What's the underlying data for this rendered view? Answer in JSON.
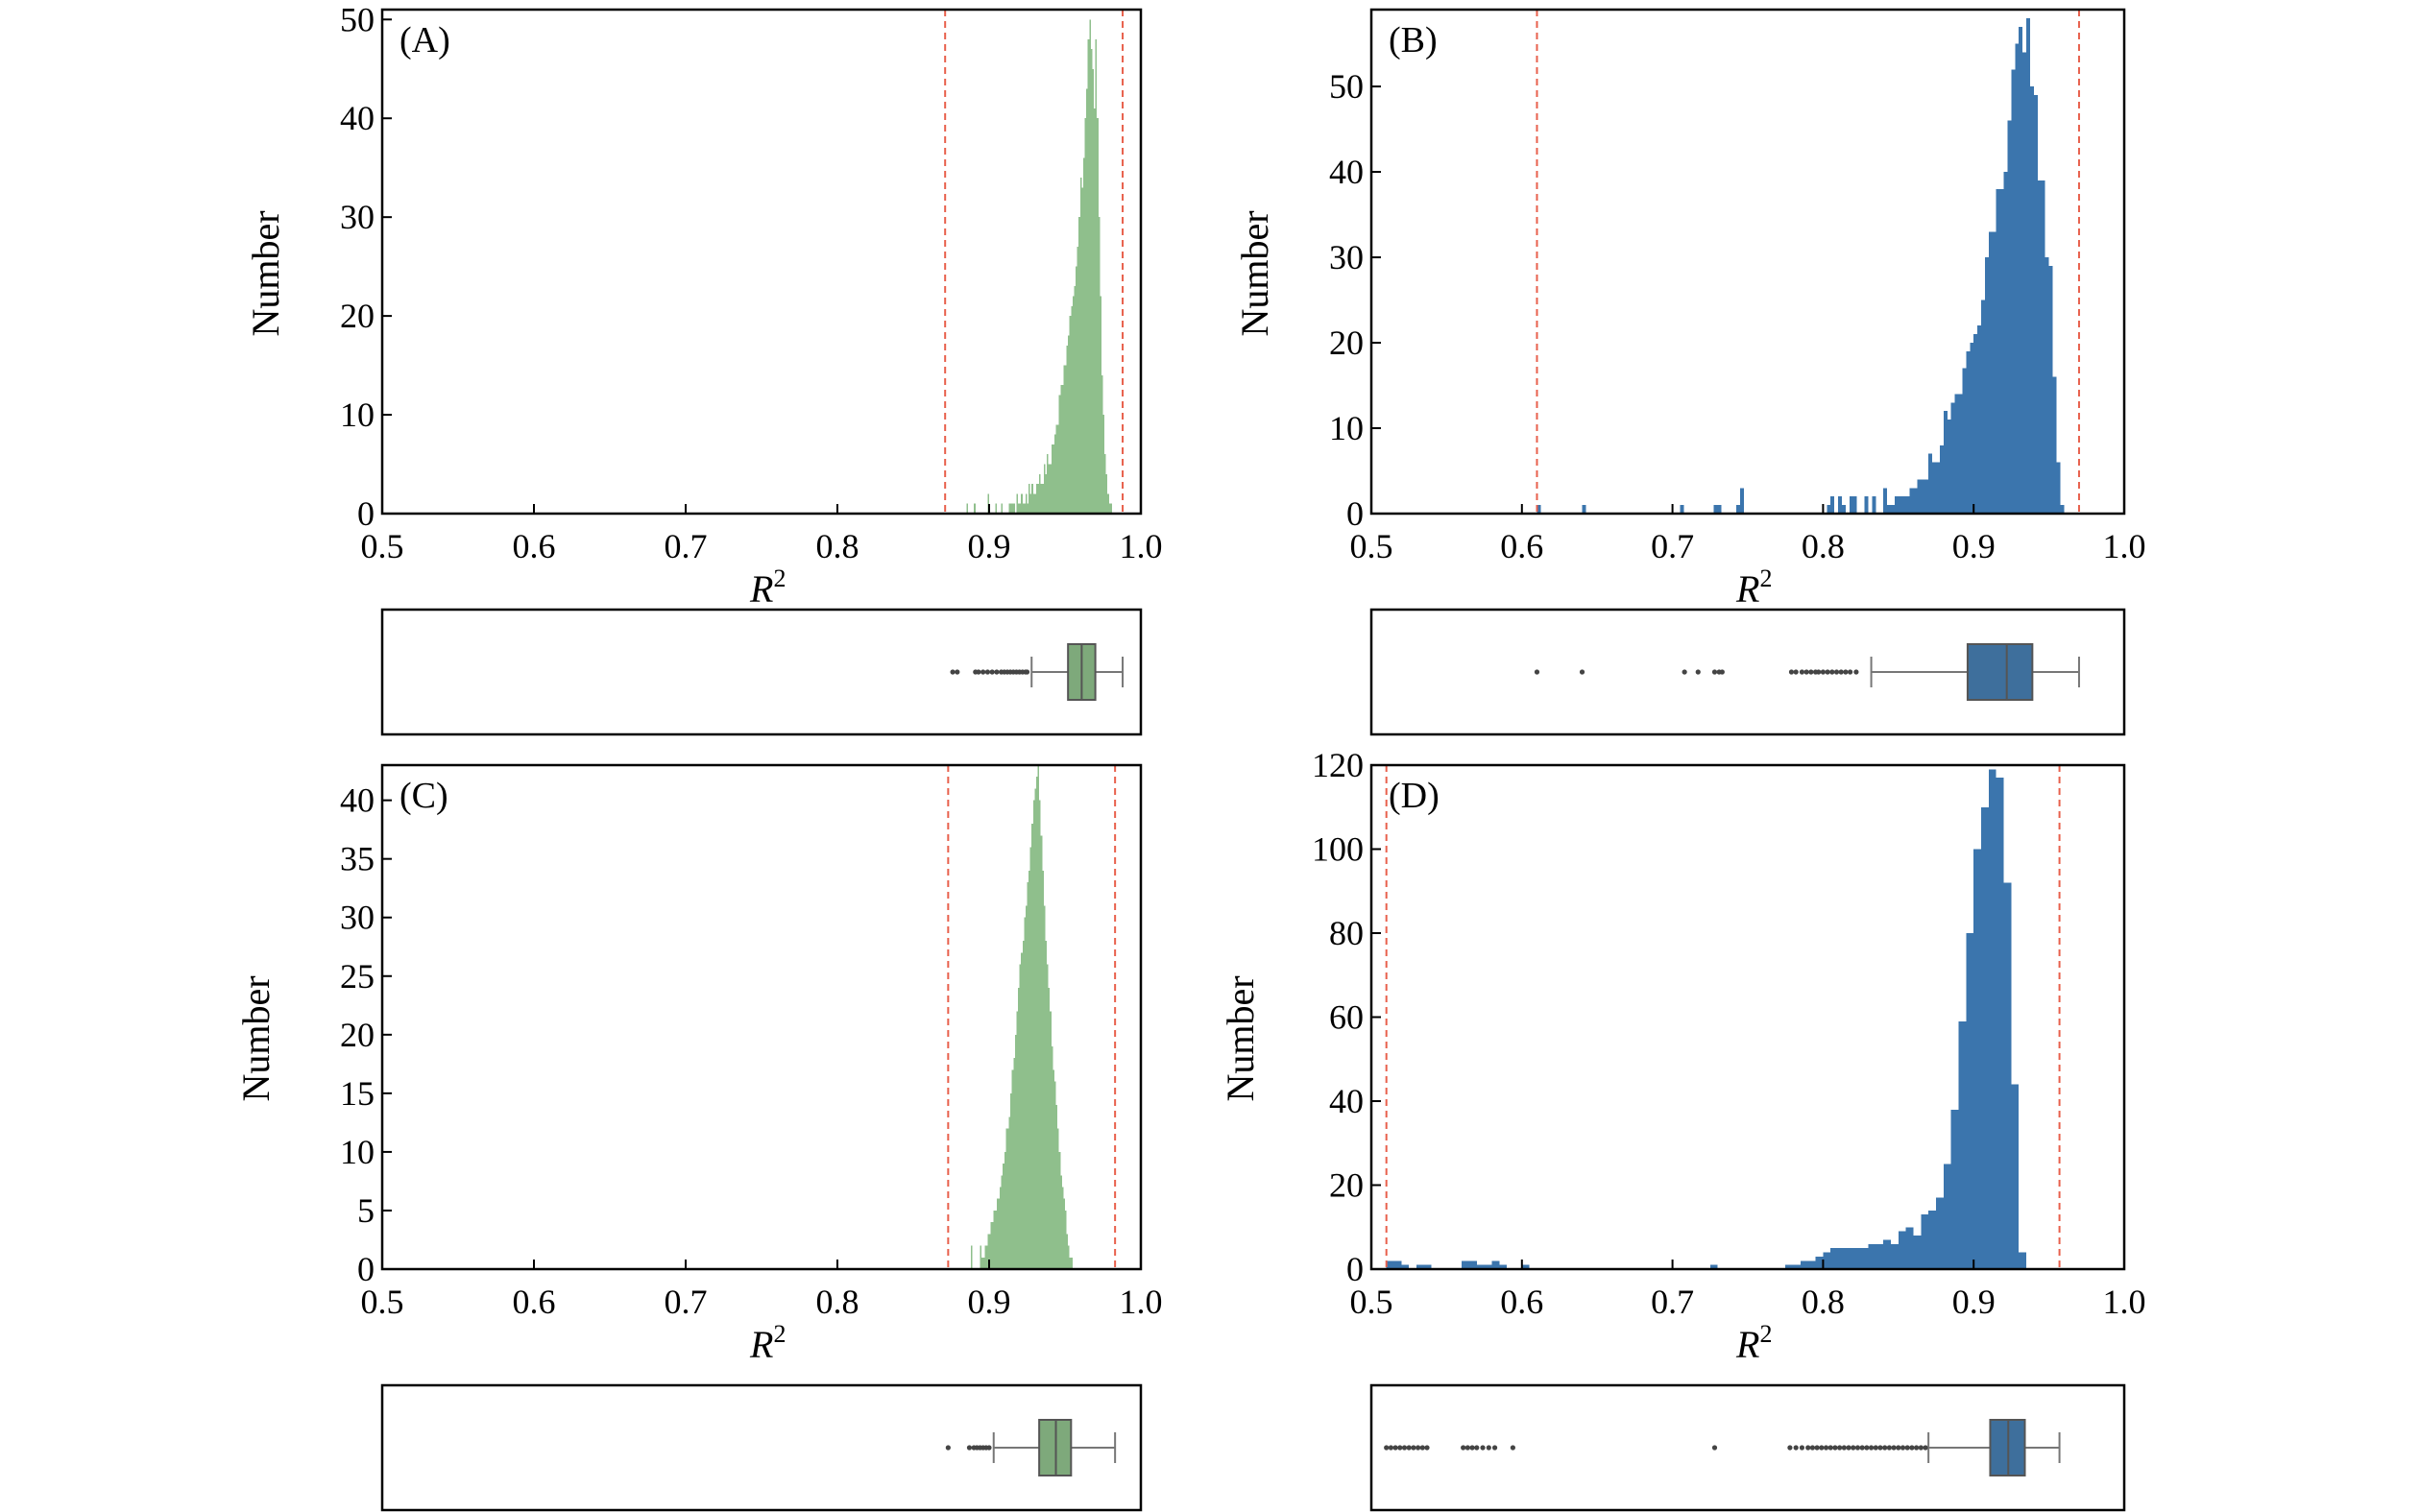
{
  "colors": {
    "green": "#8fbf8c",
    "blue": "#3b75ad",
    "red": "#e8604c",
    "axis": "#000000"
  },
  "xticks": [
    "0.5",
    "0.6",
    "0.7",
    "0.8",
    "0.9",
    "1.0"
  ],
  "chart_data": [
    {
      "id": "A",
      "label": "(A)",
      "type": "bar",
      "color": "green",
      "xlabel": "R",
      "xlabel_sup": "2",
      "ylabel": "Number",
      "xlim": [
        0.5,
        1.0
      ],
      "ylim": [
        0,
        51
      ],
      "yticks": [
        0,
        10,
        20,
        30,
        40,
        50
      ],
      "ytick_labels": [
        "0",
        "10",
        "20",
        "30",
        "40",
        "50"
      ],
      "vlines": [
        0.871,
        0.988
      ],
      "bin_start": 0.88,
      "bin_width": 0.001,
      "counts": [
        0,
        0,
        0,
        0,
        0,
        1,
        0,
        0,
        0,
        0,
        1,
        0,
        0,
        0,
        0,
        0,
        0,
        0,
        0,
        2,
        0,
        0,
        0,
        0,
        1,
        0,
        0,
        0,
        1,
        0,
        0,
        0,
        0,
        1,
        1,
        1,
        1,
        0,
        2,
        1,
        1,
        2,
        1,
        1,
        2,
        1,
        3,
        2,
        3,
        2,
        2,
        3,
        3,
        4,
        3,
        3,
        5,
        4,
        6,
        5,
        5,
        7,
        7,
        8,
        9,
        9,
        12,
        13,
        13,
        15,
        15,
        17,
        18,
        20,
        21,
        22,
        23,
        25,
        27,
        30,
        34,
        33,
        36,
        40,
        43,
        48,
        50,
        47,
        45,
        41,
        48,
        40,
        30,
        22,
        14,
        10,
        6,
        4,
        2,
        1,
        1,
        0,
        0,
        0,
        0,
        0,
        0,
        0
      ],
      "box": {
        "whisker_low": 0.928,
        "q1": 0.952,
        "median": 0.961,
        "q3": 0.97,
        "whisker_high": 0.988,
        "outliers": [
          0.876,
          0.879,
          0.891,
          0.893,
          0.896,
          0.899,
          0.902,
          0.905,
          0.908,
          0.91,
          0.912,
          0.914,
          0.916,
          0.918,
          0.92,
          0.922,
          0.924,
          0.925
        ]
      }
    },
    {
      "id": "B",
      "label": "(B)",
      "type": "bar",
      "color": "blue",
      "xlabel": "R",
      "xlabel_sup": "2",
      "ylabel": "Number",
      "xlim": [
        0.5,
        1.0
      ],
      "ylim": [
        0,
        59
      ],
      "yticks": [
        0,
        10,
        20,
        30,
        40,
        50
      ],
      "ytick_labels": [
        "0",
        "10",
        "20",
        "30",
        "40",
        "50"
      ],
      "vlines": [
        0.61,
        0.97
      ],
      "bin_start": 0.6,
      "bin_width": 0.0025,
      "counts": [
        0,
        0,
        0,
        0,
        1,
        0,
        0,
        0,
        0,
        0,
        0,
        0,
        0,
        0,
        0,
        0,
        1,
        0,
        0,
        0,
        0,
        0,
        0,
        0,
        0,
        0,
        0,
        0,
        0,
        0,
        0,
        0,
        0,
        0,
        0,
        0,
        0,
        0,
        0,
        0,
        0,
        0,
        1,
        0,
        0,
        0,
        0,
        0,
        0,
        0,
        0,
        1,
        1,
        0,
        0,
        0,
        0,
        1,
        3,
        0,
        0,
        0,
        0,
        0,
        0,
        0,
        0,
        0,
        0,
        0,
        0,
        0,
        0,
        0,
        0,
        0,
        0,
        0,
        0,
        0,
        0,
        1,
        2,
        0,
        2,
        1,
        0,
        2,
        2,
        0,
        0,
        2,
        0,
        2,
        0,
        0,
        3,
        1,
        1,
        2,
        2,
        2,
        2,
        3,
        3,
        4,
        4,
        4,
        7,
        6,
        6,
        8,
        12,
        11,
        13,
        14,
        14,
        17,
        19,
        20,
        21,
        22,
        25,
        30,
        33,
        33,
        38,
        38,
        40,
        46,
        52,
        55,
        57,
        54,
        58,
        50,
        49,
        39,
        39,
        30,
        29,
        16,
        6,
        1,
        0,
        0,
        0
      ],
      "box": {
        "whisker_low": 0.832,
        "q1": 0.896,
        "median": 0.922,
        "q3": 0.939,
        "whisker_high": 0.97,
        "outliers": [
          0.61,
          0.64,
          0.708,
          0.717,
          0.728,
          0.731,
          0.733,
          0.779,
          0.782,
          0.786,
          0.789,
          0.792,
          0.795,
          0.797,
          0.8,
          0.803,
          0.806,
          0.809,
          0.812,
          0.815,
          0.818,
          0.822
        ]
      }
    },
    {
      "id": "C",
      "label": "(C)",
      "type": "bar",
      "color": "green",
      "xlabel": "R",
      "xlabel_sup": "2",
      "ylabel": "Number",
      "xlim": [
        0.5,
        1.0
      ],
      "ylim": [
        0,
        43
      ],
      "yticks": [
        0,
        5,
        10,
        15,
        20,
        25,
        30,
        35,
        40
      ],
      "ytick_labels": [
        "0",
        "5",
        "10",
        "15",
        "20",
        "25",
        "30",
        "35",
        "40"
      ],
      "vlines": [
        0.873,
        0.983
      ],
      "bin_start": 0.88,
      "bin_width": 0.001,
      "counts": [
        0,
        0,
        0,
        0,
        0,
        0,
        0,
        0,
        2,
        0,
        0,
        0,
        0,
        0,
        2,
        1,
        1,
        2,
        2,
        3,
        3,
        4,
        4,
        5,
        5,
        6,
        6,
        7,
        8,
        9,
        10,
        12,
        12,
        13,
        15,
        17,
        18,
        20,
        22,
        24,
        26,
        27,
        28,
        30,
        31,
        33,
        34,
        36,
        38,
        40,
        41,
        42,
        43,
        40,
        37,
        34,
        31,
        28,
        26,
        24,
        22,
        19,
        17,
        16,
        14,
        12,
        10,
        8,
        7,
        6,
        5,
        3,
        2,
        1,
        1,
        0,
        0,
        0,
        0,
        0,
        0,
        0,
        0,
        0,
        0,
        0,
        0,
        0,
        0,
        0,
        0,
        0,
        0,
        0,
        0,
        0,
        0,
        0,
        0,
        0,
        0,
        0,
        0,
        0,
        0,
        0,
        0,
        0
      ],
      "box": {
        "whisker_low": 0.903,
        "q1": 0.933,
        "median": 0.944,
        "q3": 0.954,
        "whisker_high": 0.983,
        "outliers": [
          0.873,
          0.887,
          0.89,
          0.892,
          0.894,
          0.896,
          0.898,
          0.9
        ]
      }
    },
    {
      "id": "D",
      "label": "(D)",
      "type": "bar",
      "color": "blue",
      "xlabel": "R",
      "xlabel_sup": "2",
      "ylabel": "Number",
      "xlim": [
        0.5,
        1.0
      ],
      "ylim": [
        0,
        120
      ],
      "yticks": [
        0,
        20,
        40,
        60,
        80,
        100,
        120
      ],
      "ytick_labels": [
        "0",
        "20",
        "40",
        "60",
        "80",
        "100",
        "120"
      ],
      "vlines": [
        0.51,
        0.957
      ],
      "bin_start": 0.5,
      "bin_width": 0.005,
      "counts": [
        0,
        0,
        2,
        2,
        1,
        0,
        1,
        1,
        0,
        0,
        0,
        0,
        2,
        2,
        1,
        1,
        2,
        1,
        0,
        0,
        1,
        0,
        0,
        0,
        0,
        0,
        0,
        0,
        0,
        0,
        0,
        0,
        0,
        0,
        0,
        0,
        0,
        0,
        0,
        0,
        0,
        0,
        0,
        0,
        0,
        1,
        0,
        0,
        0,
        0,
        0,
        0,
        0,
        0,
        0,
        1,
        1,
        2,
        2,
        3,
        4,
        5,
        5,
        5,
        5,
        5,
        6,
        6,
        7,
        6,
        9,
        10,
        8,
        13,
        14,
        17,
        25,
        38,
        59,
        80,
        100,
        110,
        119,
        117,
        92,
        44,
        4,
        0,
        0,
        0
      ],
      "box": {
        "whisker_low": 0.87,
        "q1": 0.911,
        "median": 0.923,
        "q3": 0.934,
        "whisker_high": 0.957,
        "outliers": [
          0.51,
          0.513,
          0.516,
          0.519,
          0.522,
          0.525,
          0.528,
          0.531,
          0.534,
          0.537,
          0.561,
          0.564,
          0.567,
          0.57,
          0.574,
          0.578,
          0.582,
          0.594,
          0.728,
          0.778,
          0.782,
          0.786,
          0.79,
          0.793,
          0.796,
          0.799,
          0.802,
          0.805,
          0.808,
          0.811,
          0.814,
          0.817,
          0.82,
          0.823,
          0.826,
          0.829,
          0.832,
          0.835,
          0.838,
          0.841,
          0.844,
          0.847,
          0.85,
          0.853,
          0.856,
          0.859,
          0.862,
          0.865,
          0.868
        ]
      }
    }
  ]
}
